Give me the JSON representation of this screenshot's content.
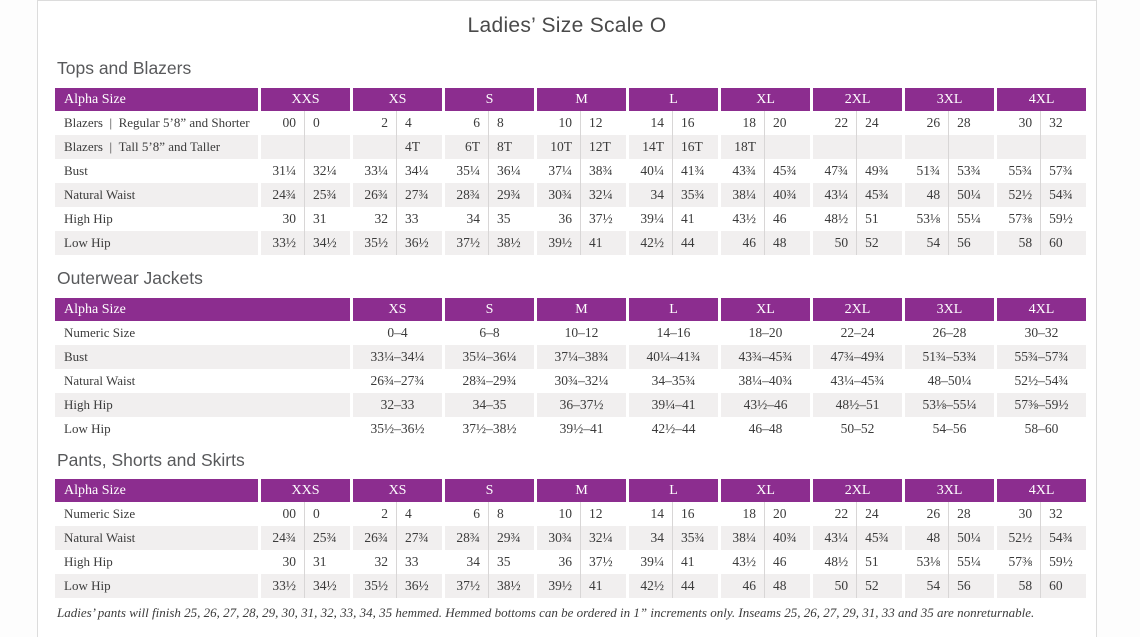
{
  "page": {
    "title": "Ladies’ Size Scale O",
    "footnote": "Ladies’ pants will finish 25, 26, 27, 28, 29, 30, 31, 32, 33, 34, 35 hemmed. Hemmed bottoms can be ordered in 1” increments only. Inseams 25, 26, 27, 29, 31, 33 and 35 are nonreturnable."
  },
  "colors": {
    "header_purple": "#8C2D8F",
    "stripe_gray": "#F1EFEF",
    "divider_gray": "#D8D6D6",
    "text_gray": "#3B3B3B"
  },
  "tables": [
    {
      "section": "Tops and Blazers",
      "header_label": "Alpha Size",
      "value_columns_per_size": 2,
      "sizes": [
        "XXS",
        "XS",
        "S",
        "M",
        "L",
        "XL",
        "2XL",
        "3XL",
        "4XL"
      ],
      "rows": [
        {
          "label": "Blazers | Regular 5’8” and Shorter",
          "values": [
            "00",
            "0",
            "2",
            "4",
            "6",
            "8",
            "10",
            "12",
            "14",
            "16",
            "18",
            "20",
            "22",
            "24",
            "26",
            "28",
            "30",
            "32"
          ]
        },
        {
          "label": "Blazers | Tall 5’8” and Taller",
          "values": [
            "",
            "",
            "",
            "4T",
            "6T",
            "8T",
            "10T",
            "12T",
            "14T",
            "16T",
            "18T",
            "",
            "",
            "",
            "",
            "",
            "",
            ""
          ]
        },
        {
          "label": "Bust",
          "values": [
            "31¼",
            "32¼",
            "33¼",
            "34¼",
            "35¼",
            "36¼",
            "37¼",
            "38¾",
            "40¼",
            "41¾",
            "43¾",
            "45¾",
            "47¾",
            "49¾",
            "51¾",
            "53¾",
            "55¾",
            "57¾"
          ]
        },
        {
          "label": "Natural Waist",
          "values": [
            "24¾",
            "25¾",
            "26¾",
            "27¾",
            "28¾",
            "29¾",
            "30¾",
            "32¼",
            "34",
            "35¾",
            "38¼",
            "40¾",
            "43¼",
            "45¾",
            "48",
            "50¼",
            "52½",
            "54¾"
          ]
        },
        {
          "label": "High Hip",
          "values": [
            "30",
            "31",
            "32",
            "33",
            "34",
            "35",
            "36",
            "37½",
            "39¼",
            "41",
            "43½",
            "46",
            "48½",
            "51",
            "53⅛",
            "55¼",
            "57⅜",
            "59½"
          ]
        },
        {
          "label": "Low Hip",
          "values": [
            "33½",
            "34½",
            "35½",
            "36½",
            "37½",
            "38½",
            "39½",
            "41",
            "42½",
            "44",
            "46",
            "48",
            "50",
            "52",
            "54",
            "56",
            "58",
            "60"
          ]
        }
      ]
    },
    {
      "section": "Outerwear Jackets",
      "header_label": "Alpha Size",
      "value_columns_per_size": 1,
      "sizes": [
        "XS",
        "S",
        "M",
        "L",
        "XL",
        "2XL",
        "3XL",
        "4XL"
      ],
      "rows": [
        {
          "label": "Numeric Size",
          "values": [
            "0–4",
            "6–8",
            "10–12",
            "14–16",
            "18–20",
            "22–24",
            "26–28",
            "30–32"
          ]
        },
        {
          "label": "Bust",
          "values": [
            "33¼–34¼",
            "35¼–36¼",
            "37¼–38¾",
            "40¼–41¾",
            "43¾–45¾",
            "47¾–49¾",
            "51¾–53¾",
            "55¾–57¾"
          ]
        },
        {
          "label": "Natural Waist",
          "values": [
            "26¾–27¾",
            "28¾–29¾",
            "30¾–32¼",
            "34–35¾",
            "38¼–40¾",
            "43¼–45¾",
            "48–50¼",
            "52½–54¾"
          ]
        },
        {
          "label": "High Hip",
          "values": [
            "32–33",
            "34–35",
            "36–37½",
            "39¼–41",
            "43½–46",
            "48½–51",
            "53⅛–55¼",
            "57⅜–59½"
          ]
        },
        {
          "label": "Low Hip",
          "values": [
            "35½–36½",
            "37½–38½",
            "39½–41",
            "42½–44",
            "46–48",
            "50–52",
            "54–56",
            "58–60"
          ]
        }
      ]
    },
    {
      "section": "Pants, Shorts and Skirts",
      "header_label": "Alpha Size",
      "value_columns_per_size": 2,
      "sizes": [
        "XXS",
        "XS",
        "S",
        "M",
        "L",
        "XL",
        "2XL",
        "3XL",
        "4XL"
      ],
      "rows": [
        {
          "label": "Numeric Size",
          "values": [
            "00",
            "0",
            "2",
            "4",
            "6",
            "8",
            "10",
            "12",
            "14",
            "16",
            "18",
            "20",
            "22",
            "24",
            "26",
            "28",
            "30",
            "32"
          ]
        },
        {
          "label": "Natural Waist",
          "values": [
            "24¾",
            "25¾",
            "26¾",
            "27¾",
            "28¾",
            "29¾",
            "30¾",
            "32¼",
            "34",
            "35¾",
            "38¼",
            "40¾",
            "43¼",
            "45¾",
            "48",
            "50¼",
            "52½",
            "54¾"
          ]
        },
        {
          "label": "High Hip",
          "values": [
            "30",
            "31",
            "32",
            "33",
            "34",
            "35",
            "36",
            "37½",
            "39¼",
            "41",
            "43½",
            "46",
            "48½",
            "51",
            "53⅛",
            "55¼",
            "57⅜",
            "59½"
          ]
        },
        {
          "label": "Low Hip",
          "values": [
            "33½",
            "34½",
            "35½",
            "36½",
            "37½",
            "38½",
            "39½",
            "41",
            "42½",
            "44",
            "46",
            "48",
            "50",
            "52",
            "54",
            "56",
            "58",
            "60"
          ]
        }
      ]
    }
  ]
}
